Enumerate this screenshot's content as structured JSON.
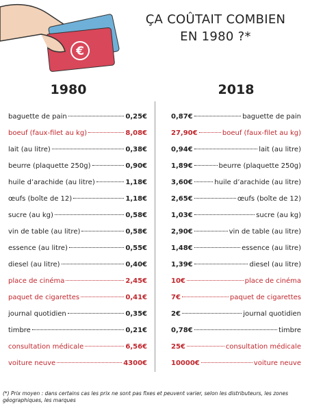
{
  "header": {
    "title_lines": [
      "ÇA COÛTAIT COMBIEN",
      "EN 1980 ?*"
    ]
  },
  "columns": [
    "1980",
    "2018"
  ],
  "table": {
    "rows": [
      {
        "item": "baguette de pain",
        "price_1980": "0,25€",
        "price_2018": "0,87€",
        "highlight": false
      },
      {
        "item": "boeuf (faux-filet au kg)",
        "price_1980": "8,08€",
        "price_2018": "27,90€",
        "highlight": true
      },
      {
        "item": "lait (au litre)",
        "price_1980": "0,38€",
        "price_2018": "0,94€",
        "highlight": false
      },
      {
        "item": "beurre (plaquette 250g)",
        "price_1980": "0,90€",
        "price_2018": "1,89€",
        "highlight": false
      },
      {
        "item": "huile d’arachide (au litre)",
        "price_1980": "1,18€",
        "price_2018": "3,60€",
        "highlight": false
      },
      {
        "item": "œufs (boîte de 12)",
        "price_1980": "1,18€",
        "price_2018": "2,65€",
        "highlight": false
      },
      {
        "item": "sucre (au kg)",
        "price_1980": "0,58€",
        "price_2018": "1,03€",
        "highlight": false
      },
      {
        "item": "vin de table (au litre)",
        "price_1980": "0,58€",
        "price_2018": "2,90€",
        "highlight": false
      },
      {
        "item": "essence (au litre)",
        "price_1980": "0,55€",
        "price_2018": "1,48€",
        "highlight": false
      },
      {
        "item": "diesel (au litre)",
        "price_1980": "0,40€",
        "price_2018": "1,39€",
        "highlight": false
      },
      {
        "item": "place de cinéma",
        "price_1980": "2,45€",
        "price_2018": "10€",
        "highlight": true
      },
      {
        "item": "paquet de cigarettes",
        "price_1980": "0,41€",
        "price_2018": "7€",
        "highlight": true
      },
      {
        "item": "journal quotidien",
        "price_1980": "0,35€",
        "price_2018": "2€",
        "highlight": false
      },
      {
        "item": "timbre",
        "price_1980": "0,21€",
        "price_2018": "0,78€",
        "highlight": false
      },
      {
        "item": "consultation médicale",
        "price_1980": "6,56€",
        "price_2018": "25€",
        "highlight": true
      },
      {
        "item": "voiture neuve",
        "price_1980": "4300€",
        "price_2018": "10000€",
        "highlight": true
      }
    ]
  },
  "footnote": "(*) Prix moyen : dans certains cas les prix ne sont pas fixes et peuvent varier, selon les distributeurs, les zones géographiques, les marques"
}
